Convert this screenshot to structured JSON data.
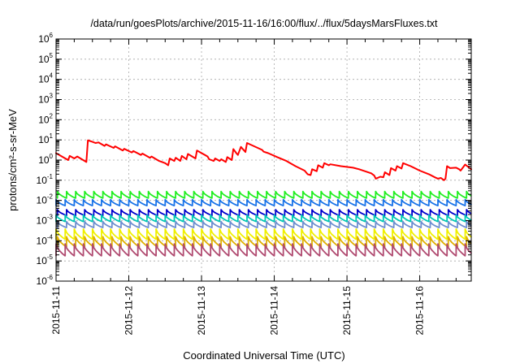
{
  "chart_data": {
    "type": "line",
    "title": "/data/run/goesPlots/archive/2015-11-16/16:00/flux/../flux/5daysMarsFluxes.txt",
    "xlabel": "Coordinated Universal Time (UTC)",
    "ylabel": "protons/cm²-s-sr-MeV",
    "x_axis": {
      "type": "date",
      "min": "2015-11-11",
      "max": "2015-11-16 17:00",
      "tick_labels": [
        "2015-11-11",
        "2015-11-12",
        "2015-11-13",
        "2015-11-14",
        "2015-11-15",
        "2015-11-16"
      ]
    },
    "y_axis": {
      "scale": "log",
      "ylim": [
        1e-06,
        1000000.0
      ],
      "ticks": [
        {
          "value": 1e-06,
          "base": "10",
          "exp": "-6"
        },
        {
          "value": 1e-05,
          "base": "10",
          "exp": "-5"
        },
        {
          "value": 0.0001,
          "base": "10",
          "exp": "-4"
        },
        {
          "value": 0.001,
          "base": "10",
          "exp": "-3"
        },
        {
          "value": 0.01,
          "base": "10",
          "exp": "-2"
        },
        {
          "value": 0.1,
          "base": "10",
          "exp": "-1"
        },
        {
          "value": 1,
          "base": "10",
          "exp": "0"
        },
        {
          "value": 10,
          "base": "10",
          "exp": "1"
        },
        {
          "value": 100,
          "base": "10",
          "exp": "2"
        },
        {
          "value": 1000,
          "base": "10",
          "exp": "3"
        },
        {
          "value": 10000,
          "base": "10",
          "exp": "4"
        },
        {
          "value": 100000,
          "base": "10",
          "exp": "5"
        },
        {
          "value": 1000000,
          "base": "10",
          "exp": "6"
        }
      ]
    },
    "grid": true,
    "legend": "none",
    "series": [
      {
        "color": "#ff0000",
        "points": [
          [
            "2015-11-11 00:00",
            2.2
          ],
          [
            "2015-11-11 04:00",
            1.0
          ],
          [
            "2015-11-11 04:30",
            1.6
          ],
          [
            "2015-11-11 06:00",
            1.2
          ],
          [
            "2015-11-11 07:00",
            1.5
          ],
          [
            "2015-11-11 10:00",
            0.8
          ],
          [
            "2015-11-11 10:30",
            9.5
          ],
          [
            "2015-11-11 12:00",
            8.0
          ],
          [
            "2015-11-11 13:00",
            7.0
          ],
          [
            "2015-11-11 14:00",
            7.5
          ],
          [
            "2015-11-11 16:00",
            5.0
          ],
          [
            "2015-11-11 16:30",
            6.0
          ],
          [
            "2015-11-11 19:00",
            4.0
          ],
          [
            "2015-11-11 19:30",
            4.8
          ],
          [
            "2015-11-11 22:00",
            3.0
          ],
          [
            "2015-11-11 22:30",
            3.6
          ],
          [
            "2015-11-12 01:00",
            2.4
          ],
          [
            "2015-11-12 01:30",
            2.8
          ],
          [
            "2015-11-12 04:00",
            1.8
          ],
          [
            "2015-11-12 04:30",
            2.1
          ],
          [
            "2015-11-12 07:00",
            1.3
          ],
          [
            "2015-11-12 07:30",
            1.5
          ],
          [
            "2015-11-12 10:00",
            0.9
          ],
          [
            "2015-11-12 12:00",
            0.7
          ],
          [
            "2015-11-12 13:00",
            0.55
          ],
          [
            "2015-11-12 13:30",
            1.2
          ],
          [
            "2015-11-12 15:00",
            0.9
          ],
          [
            "2015-11-12 15:30",
            1.3
          ],
          [
            "2015-11-12 17:00",
            0.9
          ],
          [
            "2015-11-12 17:30",
            1.6
          ],
          [
            "2015-11-12 19:00",
            1.1
          ],
          [
            "2015-11-12 19:30",
            2.0
          ],
          [
            "2015-11-12 22:00",
            1.2
          ],
          [
            "2015-11-12 22:30",
            3.0
          ],
          [
            "2015-11-13 02:00",
            1.5
          ],
          [
            "2015-11-13 02:30",
            1.1
          ],
          [
            "2015-11-13 04:00",
            0.9
          ],
          [
            "2015-11-13 04:30",
            1.2
          ],
          [
            "2015-11-13 06:00",
            0.9
          ],
          [
            "2015-11-13 06:30",
            1.1
          ],
          [
            "2015-11-13 08:00",
            0.8
          ],
          [
            "2015-11-13 08:30",
            1.4
          ],
          [
            "2015-11-13 10:00",
            1.0
          ],
          [
            "2015-11-13 10:30",
            3.5
          ],
          [
            "2015-11-13 11:30",
            2.2
          ],
          [
            "2015-11-13 12:00",
            1.8
          ],
          [
            "2015-11-13 13:00",
            4.5
          ],
          [
            "2015-11-13 14:30",
            2.5
          ],
          [
            "2015-11-13 15:00",
            7.0
          ],
          [
            "2015-11-13 20:00",
            3.2
          ],
          [
            "2015-11-13 20:30",
            2.6
          ],
          [
            "2015-11-13 22:00",
            2.2
          ],
          [
            "2015-11-14 01:00",
            1.4
          ],
          [
            "2015-11-14 04:00",
            0.9
          ],
          [
            "2015-11-14 07:00",
            0.5
          ],
          [
            "2015-11-14 10:00",
            0.3
          ],
          [
            "2015-11-14 11:00",
            0.2
          ],
          [
            "2015-11-14 12:00",
            0.18
          ],
          [
            "2015-11-14 12:30",
            0.35
          ],
          [
            "2015-11-14 14:00",
            0.28
          ],
          [
            "2015-11-14 14:30",
            0.55
          ],
          [
            "2015-11-14 16:00",
            0.42
          ],
          [
            "2015-11-14 16:30",
            0.7
          ],
          [
            "2015-11-14 18:00",
            0.55
          ],
          [
            "2015-11-14 18:30",
            0.62
          ],
          [
            "2015-11-14 22:00",
            0.5
          ],
          [
            "2015-11-15 02:00",
            0.42
          ],
          [
            "2015-11-15 04:00",
            0.35
          ],
          [
            "2015-11-15 08:00",
            0.22
          ],
          [
            "2015-11-15 09:00",
            0.17
          ],
          [
            "2015-11-15 09:30",
            0.12
          ],
          [
            "2015-11-15 11:00",
            0.15
          ],
          [
            "2015-11-15 12:00",
            0.14
          ],
          [
            "2015-11-15 12:30",
            0.25
          ],
          [
            "2015-11-15 14:00",
            0.18
          ],
          [
            "2015-11-15 14:30",
            0.4
          ],
          [
            "2015-11-15 16:00",
            0.3
          ],
          [
            "2015-11-15 16:30",
            0.5
          ],
          [
            "2015-11-15 18:00",
            0.38
          ],
          [
            "2015-11-15 18:30",
            0.7
          ],
          [
            "2015-11-15 21:00",
            0.5
          ],
          [
            "2015-11-16 00:00",
            0.3
          ],
          [
            "2015-11-16 03:00",
            0.2
          ],
          [
            "2015-11-16 05:00",
            0.14
          ],
          [
            "2015-11-16 06:00",
            0.12
          ],
          [
            "2015-11-16 07:00",
            0.13
          ],
          [
            "2015-11-16 08:00",
            0.1
          ],
          [
            "2015-11-16 08:30",
            0.12
          ],
          [
            "2015-11-16 09:00",
            0.5
          ],
          [
            "2015-11-16 10:00",
            0.4
          ],
          [
            "2015-11-16 12:00",
            0.42
          ],
          [
            "2015-11-16 13:00",
            0.35
          ],
          [
            "2015-11-16 13:30",
            0.3
          ],
          [
            "2015-11-16 15:00",
            0.6
          ],
          [
            "2015-11-16 17:00",
            0.35
          ]
        ]
      },
      {
        "color": "#22ee22",
        "baseline": 0.013,
        "peak": 0.028
      },
      {
        "color": "#1a73e8",
        "baseline": 0.0055,
        "peak": 0.011
      },
      {
        "color": "#0000cc",
        "baseline": 0.0018,
        "peak": 0.0035
      },
      {
        "color": "#00c8b4",
        "baseline": 0.0009,
        "peak": 0.0019
      },
      {
        "color": "#6f8fcf",
        "baseline": 0.00045,
        "peak": 0.0009
      },
      {
        "color": "#f0f000",
        "baseline": 0.00012,
        "peak": 0.00038
      },
      {
        "color": "#e0b000",
        "baseline": 5e-05,
        "peak": 0.00016
      },
      {
        "color": "#b04a70",
        "baseline": 1.8e-05,
        "peak": 7e-05
      }
    ],
    "sawtooth_period_hours": 3
  }
}
